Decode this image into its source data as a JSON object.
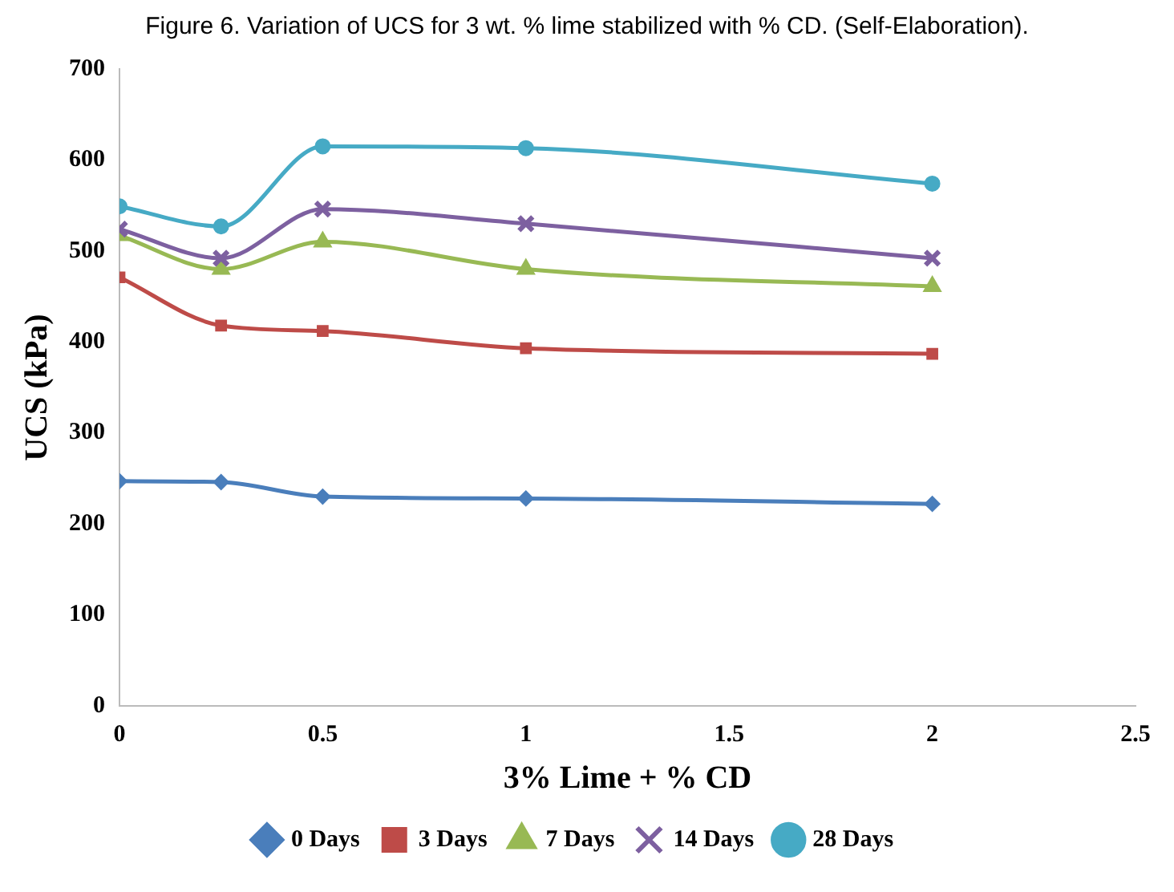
{
  "chart_data": {
    "type": "line",
    "title": "Figure 6. Variation of UCS for 3 wt. % lime stabilized with % CD. (Self-Elaboration).",
    "xlabel": "3% Lime + % CD",
    "ylabel": "UCS (kPa)",
    "x": [
      0,
      0.25,
      0.5,
      1,
      2
    ],
    "series": [
      {
        "name": "0 Days",
        "color": "#4a7ebb",
        "marker": "diamond",
        "values": [
          247,
          246,
          230,
          228,
          222
        ]
      },
      {
        "name": "3 Days",
        "color": "#be4b48",
        "marker": "square",
        "values": [
          471,
          418,
          412,
          393,
          387
        ]
      },
      {
        "name": "7 Days",
        "color": "#98b954",
        "marker": "triangle",
        "values": [
          517,
          480,
          510,
          480,
          461
        ]
      },
      {
        "name": "14 Days",
        "color": "#7d60a0",
        "marker": "cross",
        "values": [
          524,
          492,
          546,
          530,
          492
        ]
      },
      {
        "name": "28 Days",
        "color": "#46aac5",
        "marker": "circle",
        "values": [
          549,
          527,
          615,
          613,
          574
        ]
      }
    ],
    "xlim": [
      0,
      2.5
    ],
    "xticks": [
      0,
      0.5,
      1,
      1.5,
      2,
      2.5
    ],
    "ylim": [
      0,
      700
    ],
    "yticks": [
      0,
      100,
      200,
      300,
      400,
      500,
      600,
      700
    ],
    "grid": false,
    "legend": "bottom",
    "line_style": "solid"
  }
}
